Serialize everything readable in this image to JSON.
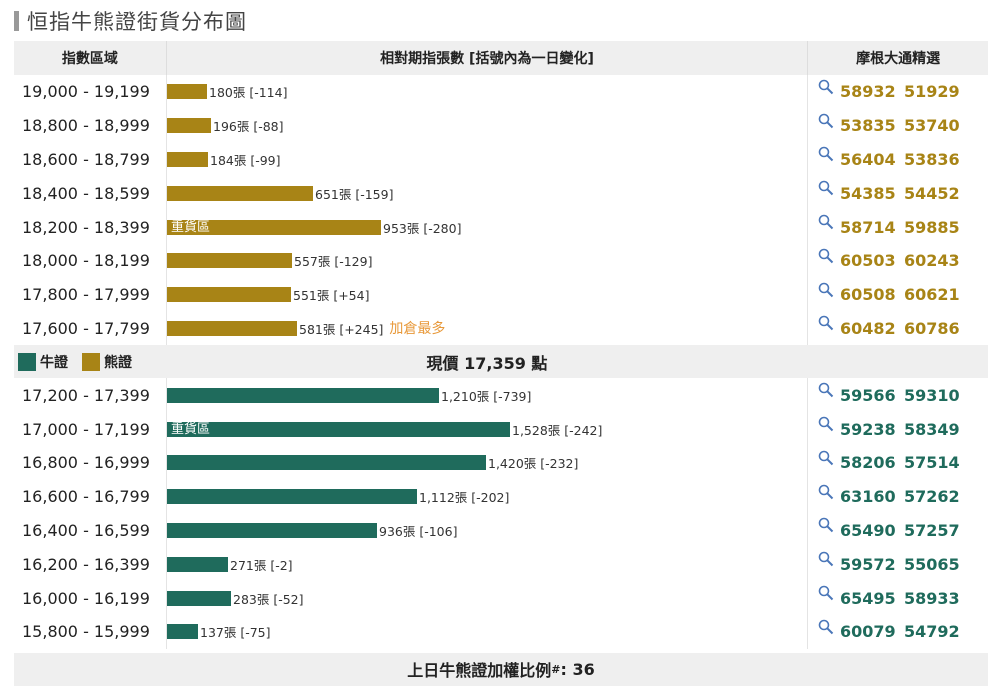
{
  "title": "恒指牛熊證街貨分布圖",
  "header": {
    "col1": "指數區域",
    "col2": "相對期指張數 [括號內為一日變化]",
    "col3": "摩根大通精選"
  },
  "colors": {
    "bear": "#a88416",
    "bull": "#1f6b5c",
    "highlight": "#e8993a"
  },
  "heavy_label": "重貨區",
  "bear_rows": [
    {
      "range": "19,000 - 19,199",
      "count": 180,
      "label": "180張 [-114]",
      "heavy": false,
      "most": "",
      "codes": [
        "58932",
        "51929"
      ]
    },
    {
      "range": "18,800 - 18,999",
      "count": 196,
      "label": "196張 [-88]",
      "heavy": false,
      "most": "",
      "codes": [
        "53835",
        "53740"
      ]
    },
    {
      "range": "18,600 - 18,799",
      "count": 184,
      "label": "184張 [-99]",
      "heavy": false,
      "most": "",
      "codes": [
        "56404",
        "53836"
      ]
    },
    {
      "range": "18,400 - 18,599",
      "count": 651,
      "label": "651張 [-159]",
      "heavy": false,
      "most": "",
      "codes": [
        "54385",
        "54452"
      ]
    },
    {
      "range": "18,200 - 18,399",
      "count": 953,
      "label": "953張 [-280]",
      "heavy": true,
      "most": "",
      "codes": [
        "58714",
        "59885"
      ]
    },
    {
      "range": "18,000 - 18,199",
      "count": 557,
      "label": "557張 [-129]",
      "heavy": false,
      "most": "",
      "codes": [
        "60503",
        "60243"
      ]
    },
    {
      "range": "17,800 - 17,999",
      "count": 551,
      "label": "551張 [+54]",
      "heavy": false,
      "most": "",
      "codes": [
        "60508",
        "60621"
      ]
    },
    {
      "range": "17,600 - 17,799",
      "count": 581,
      "label": "581張 [+245]",
      "heavy": false,
      "most": "加倉最多",
      "codes": [
        "60482",
        "60786"
      ]
    }
  ],
  "legend": {
    "bull": "牛證",
    "bear": "熊證"
  },
  "current_price": "現價 17,359 點",
  "bull_rows": [
    {
      "range": "17,200 - 17,399",
      "count": 1210,
      "label": "1,210張 [-739]",
      "heavy": false,
      "most": "",
      "codes": [
        "59566",
        "59310"
      ]
    },
    {
      "range": "17,000 - 17,199",
      "count": 1528,
      "label": "1,528張 [-242]",
      "heavy": true,
      "most": "",
      "codes": [
        "59238",
        "58349"
      ]
    },
    {
      "range": "16,800 - 16,999",
      "count": 1420,
      "label": "1,420張 [-232]",
      "heavy": false,
      "most": "",
      "codes": [
        "58206",
        "57514"
      ]
    },
    {
      "range": "16,600 - 16,799",
      "count": 1112,
      "label": "1,112張 [-202]",
      "heavy": false,
      "most": "",
      "codes": [
        "63160",
        "57262"
      ]
    },
    {
      "range": "16,400 - 16,599",
      "count": 936,
      "label": "936張 [-106]",
      "heavy": false,
      "most": "",
      "codes": [
        "65490",
        "57257"
      ]
    },
    {
      "range": "16,200 - 16,399",
      "count": 271,
      "label": "271張 [-2]",
      "heavy": false,
      "most": "",
      "codes": [
        "59572",
        "55065"
      ]
    },
    {
      "range": "16,000 - 16,199",
      "count": 283,
      "label": "283張 [-52]",
      "heavy": false,
      "most": "",
      "codes": [
        "65495",
        "58933"
      ]
    },
    {
      "range": "15,800 - 15,999",
      "count": 137,
      "label": "137張 [-75]",
      "heavy": false,
      "most": "",
      "codes": [
        "60079",
        "54792"
      ]
    }
  ],
  "footer": {
    "label": "上日牛熊證加權比例",
    "mark": "#",
    "value": ": 36"
  }
}
